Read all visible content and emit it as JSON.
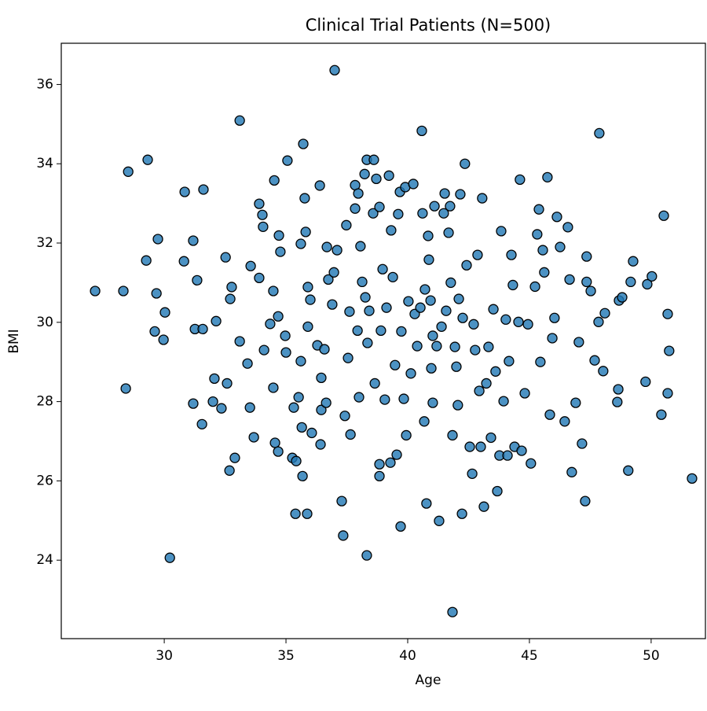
{
  "chart_data": {
    "type": "scatter",
    "title": "Clinical Trial Patients (N=500)",
    "x_label": "Age",
    "y_label": "BMI",
    "color": "#1f77b4",
    "edge_color": "#000000",
    "xlim": [
      25.77,
      52.23
    ],
    "ylim": [
      22.02,
      37.04
    ],
    "xticks": [
      30,
      35,
      40,
      45,
      50
    ],
    "yticks": [
      24,
      26,
      28,
      30,
      32,
      34,
      36
    ],
    "x": [
      27.16,
      28.32,
      28.42,
      28.52,
      29.32,
      29.26,
      29.74,
      29.68,
      29.61,
      30.03,
      29.97,
      30.23,
      30.84,
      30.81,
      31.19,
      31.35,
      31.26,
      31.19,
      31.61,
      31.58,
      31.55,
      32.13,
      32.06,
      32.0,
      32.35,
      32.52,
      32.58,
      32.68,
      32.71,
      32.9,
      33.1,
      33.1,
      32.77,
      33.42,
      33.55,
      33.52,
      33.68,
      33.9,
      34.06,
      34.03,
      33.9,
      34.1,
      34.52,
      34.48,
      34.55,
      34.68,
      34.71,
      34.77,
      34.35,
      34.48,
      34.68,
      35.0,
      35.06,
      34.97,
      35.26,
      35.32,
      35.39,
      35.61,
      35.42,
      35.52,
      35.61,
      35.68,
      35.77,
      35.71,
      35.81,
      35.9,
      35.65,
      35.87,
      35.9,
      36.0,
      36.29,
      36.06,
      36.39,
      36.45,
      36.45,
      36.58,
      36.65,
      36.42,
      36.68,
      36.74,
      36.9,
      37.0,
      36.97,
      37.1,
      37.29,
      37.35,
      37.42,
      37.48,
      37.55,
      37.61,
      37.65,
      37.84,
      37.84,
      37.94,
      38.0,
      38.06,
      37.97,
      38.13,
      38.23,
      38.32,
      38.26,
      38.32,
      38.35,
      38.42,
      38.58,
      38.61,
      38.65,
      38.71,
      38.84,
      38.84,
      38.84,
      38.9,
      38.97,
      39.06,
      39.13,
      39.23,
      39.29,
      39.32,
      39.39,
      39.48,
      39.55,
      39.61,
      39.71,
      39.74,
      39.68,
      39.84,
      39.9,
      39.94,
      40.03,
      40.13,
      40.23,
      40.29,
      40.39,
      40.58,
      40.52,
      40.61,
      40.68,
      40.71,
      40.77,
      40.84,
      40.87,
      40.94,
      40.97,
      41.03,
      41.03,
      41.1,
      41.19,
      41.29,
      41.39,
      41.48,
      41.52,
      41.58,
      41.68,
      41.74,
      41.77,
      41.84,
      41.84,
      41.94,
      42.0,
      42.06,
      42.1,
      42.16,
      42.23,
      42.26,
      42.35,
      42.42,
      42.55,
      42.65,
      42.71,
      42.77,
      42.87,
      42.94,
      43.0,
      43.06,
      43.13,
      43.23,
      43.32,
      43.42,
      43.52,
      43.61,
      43.68,
      43.77,
      43.84,
      43.94,
      44.03,
      44.1,
      44.16,
      44.26,
      44.32,
      44.39,
      44.55,
      44.61,
      44.68,
      44.81,
      44.94,
      45.06,
      45.23,
      45.32,
      45.39,
      45.45,
      45.55,
      45.61,
      45.74,
      45.84,
      45.94,
      46.03,
      46.13,
      46.26,
      46.45,
      46.58,
      46.65,
      46.74,
      46.9,
      47.03,
      47.16,
      47.29,
      47.35,
      47.35,
      47.52,
      47.68,
      47.84,
      47.87,
      48.03,
      48.1,
      48.61,
      48.65,
      48.68,
      48.81,
      49.06,
      49.26,
      49.16,
      49.77,
      49.84,
      50.03,
      50.42,
      50.52,
      50.68,
      50.68,
      50.74,
      51.68
    ],
    "y": [
      30.79,
      30.79,
      28.33,
      33.8,
      34.1,
      31.56,
      32.1,
      30.73,
      29.77,
      30.25,
      29.56,
      24.06,
      33.29,
      31.54,
      32.06,
      31.06,
      29.83,
      27.95,
      33.35,
      29.83,
      27.43,
      30.03,
      28.58,
      28.0,
      27.83,
      31.64,
      28.46,
      26.26,
      30.59,
      26.58,
      35.09,
      29.52,
      30.89,
      28.96,
      31.42,
      27.85,
      27.1,
      32.99,
      32.41,
      32.71,
      31.12,
      29.3,
      33.58,
      30.79,
      26.96,
      26.74,
      32.19,
      31.78,
      29.96,
      28.35,
      30.15,
      29.24,
      34.08,
      29.66,
      26.58,
      27.85,
      25.17,
      31.98,
      26.5,
      28.11,
      29.02,
      26.12,
      33.13,
      34.5,
      32.28,
      30.89,
      27.35,
      25.17,
      29.89,
      30.57,
      29.42,
      27.21,
      33.45,
      28.6,
      27.79,
      29.32,
      27.97,
      26.92,
      31.9,
      31.08,
      30.45,
      36.36,
      31.26,
      31.82,
      25.49,
      24.62,
      27.64,
      32.45,
      29.1,
      30.27,
      27.17,
      33.46,
      32.87,
      29.79,
      28.11,
      31.92,
      33.25,
      31.02,
      33.74,
      34.1,
      30.63,
      24.12,
      29.48,
      30.29,
      32.75,
      34.1,
      28.46,
      33.62,
      26.42,
      26.12,
      32.91,
      29.79,
      31.34,
      28.05,
      30.37,
      33.7,
      26.46,
      32.32,
      31.14,
      28.92,
      26.66,
      32.73,
      24.85,
      29.77,
      33.29,
      28.07,
      33.41,
      27.15,
      30.53,
      28.71,
      33.49,
      30.21,
      29.4,
      34.83,
      30.37,
      32.75,
      27.5,
      30.83,
      25.43,
      32.18,
      31.58,
      30.55,
      28.84,
      27.97,
      29.66,
      32.93,
      29.4,
      24.99,
      29.89,
      32.75,
      33.25,
      30.29,
      32.26,
      32.93,
      31.0,
      27.15,
      22.69,
      29.38,
      28.88,
      27.91,
      30.59,
      33.23,
      25.17,
      30.11,
      34.0,
      31.44,
      26.86,
      26.18,
      29.95,
      29.3,
      31.7,
      28.27,
      26.86,
      33.13,
      25.35,
      28.46,
      29.38,
      27.09,
      30.33,
      28.76,
      25.74,
      26.64,
      32.3,
      28.01,
      30.07,
      26.64,
      29.02,
      31.7,
      30.94,
      26.86,
      30.01,
      33.6,
      26.76,
      28.21,
      29.95,
      26.44,
      30.9,
      32.22,
      32.85,
      29.0,
      31.82,
      31.26,
      33.66,
      27.67,
      29.6,
      30.11,
      32.66,
      31.9,
      27.5,
      32.4,
      31.08,
      26.22,
      27.97,
      29.5,
      26.94,
      25.49,
      31.66,
      31.02,
      30.79,
      29.04,
      30.01,
      34.77,
      28.77,
      30.23,
      27.99,
      28.31,
      30.55,
      30.63,
      26.26,
      31.54,
      31.02,
      28.5,
      30.96,
      31.16,
      27.67,
      32.69,
      30.21,
      28.21,
      29.28,
      26.06
    ]
  }
}
